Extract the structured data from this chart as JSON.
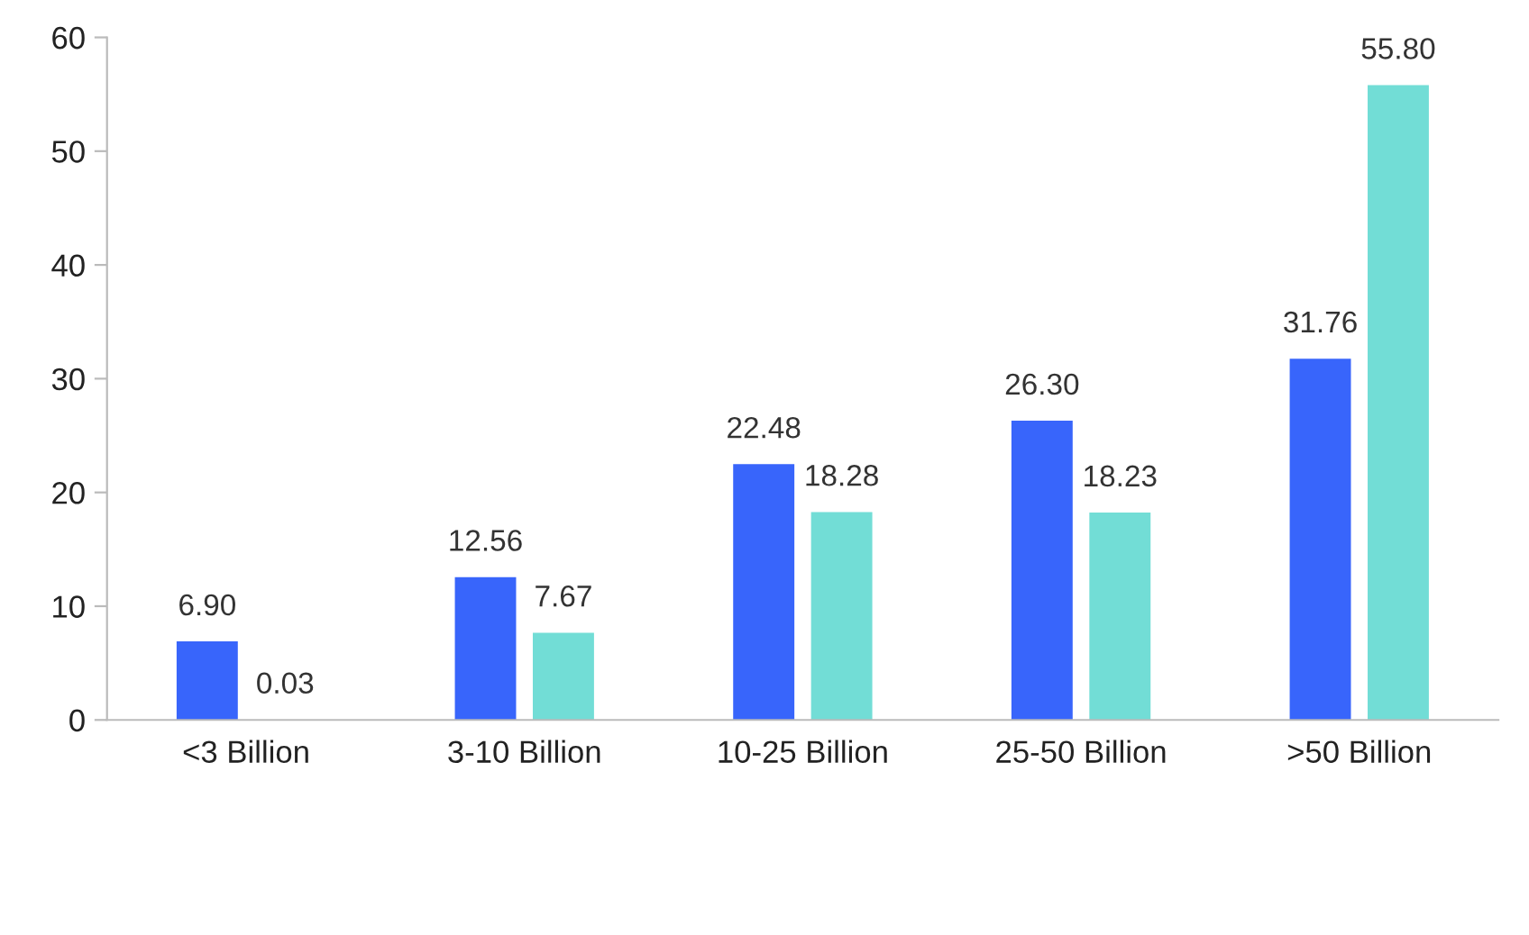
{
  "chart_data": {
    "type": "bar",
    "categories": [
      "<3 Billion",
      "3-10 Billion",
      "10-25 Billion",
      "25-50 Billion",
      ">50 Billion"
    ],
    "series": [
      {
        "color": "#3865fb",
        "values": [
          6.9,
          12.56,
          22.48,
          26.3,
          31.76
        ],
        "value_labels": [
          "6.90",
          "12.56",
          "22.48",
          "26.30",
          "31.76"
        ]
      },
      {
        "color": "#72ddd6",
        "values": [
          0.03,
          7.67,
          18.28,
          18.23,
          55.8
        ],
        "value_labels": [
          "0.03",
          "7.67",
          "18.28",
          "18.23",
          "55.80"
        ]
      }
    ],
    "ylim": [
      0,
      60
    ],
    "yticks": [
      0,
      10,
      20,
      30,
      40,
      50,
      60
    ],
    "grid": false
  }
}
